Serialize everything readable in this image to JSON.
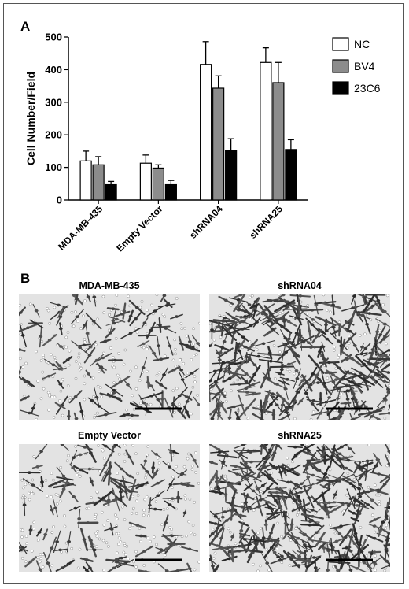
{
  "panel_labels": [
    "A",
    "B"
  ],
  "chart_data": {
    "type": "bar",
    "categories": [
      "MDA-MB-435",
      "Empty Vector",
      "shRNA04",
      "shRNA25"
    ],
    "series": [
      {
        "name": "NC",
        "values": [
          120,
          113,
          416,
          422
        ],
        "errors": [
          30,
          25,
          70,
          45
        ],
        "color": "#ffffff"
      },
      {
        "name": "BV4",
        "values": [
          108,
          98,
          343,
          360
        ],
        "errors": [
          25,
          10,
          38,
          62
        ],
        "color": "#8c8c8c"
      },
      {
        "name": "23C6",
        "values": [
          47,
          47,
          153,
          155
        ],
        "errors": [
          10,
          13,
          35,
          30
        ],
        "color": "#000000"
      }
    ],
    "title": "",
    "xlabel": "",
    "ylabel": "Cell Number/Field",
    "ylim": [
      0,
      500
    ],
    "yticks": [
      0,
      100,
      200,
      300,
      400,
      500
    ],
    "legend": "top-right",
    "grid": false
  },
  "micrographs": [
    {
      "title": "MDA-MB-435",
      "density": "low"
    },
    {
      "title": "shRNA04",
      "density": "high"
    },
    {
      "title": "Empty Vector",
      "density": "low"
    },
    {
      "title": "shRNA25",
      "density": "high"
    }
  ]
}
